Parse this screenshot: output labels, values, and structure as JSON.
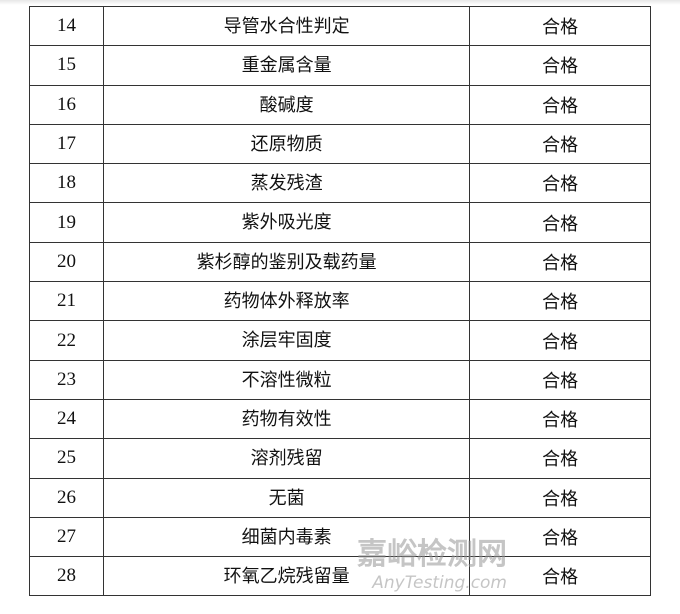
{
  "rows": [
    {
      "no": "14",
      "item": "导管水合性判定",
      "result": "合格"
    },
    {
      "no": "15",
      "item": "重金属含量",
      "result": "合格"
    },
    {
      "no": "16",
      "item": "酸碱度",
      "result": "合格"
    },
    {
      "no": "17",
      "item": "还原物质",
      "result": "合格"
    },
    {
      "no": "18",
      "item": "蒸发残渣",
      "result": "合格"
    },
    {
      "no": "19",
      "item": "紫外吸光度",
      "result": "合格"
    },
    {
      "no": "20",
      "item": "紫杉醇的鉴别及载药量",
      "result": "合格"
    },
    {
      "no": "21",
      "item": "药物体外释放率",
      "result": "合格"
    },
    {
      "no": "22",
      "item": "涂层牢固度",
      "result": "合格"
    },
    {
      "no": "23",
      "item": "不溶性微粒",
      "result": "合格"
    },
    {
      "no": "24",
      "item": "药物有效性",
      "result": "合格"
    },
    {
      "no": "25",
      "item": "溶剂残留",
      "result": "合格"
    },
    {
      "no": "26",
      "item": "无菌",
      "result": "合格"
    },
    {
      "no": "27",
      "item": "细菌内毒素",
      "result": "合格"
    },
    {
      "no": "28",
      "item": "环氧乙烷残留量",
      "result": "合格"
    }
  ],
  "watermark": {
    "cn": "嘉峪检测网",
    "en": "AnyTesting.com"
  }
}
